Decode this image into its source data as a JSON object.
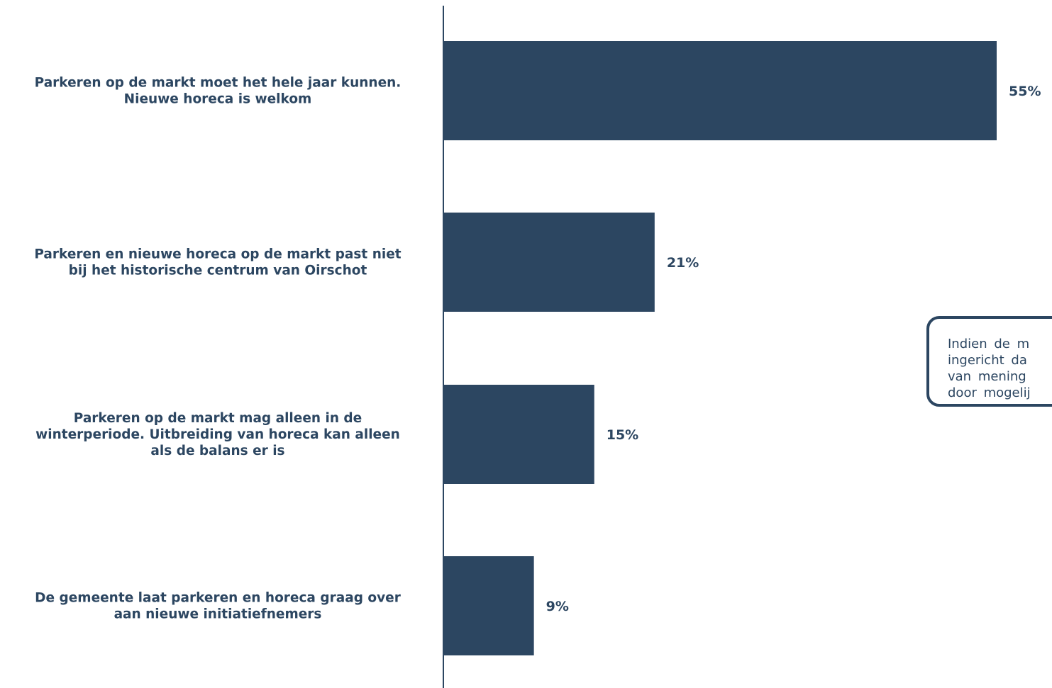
{
  "chart_data": {
    "type": "bar",
    "orientation": "horizontal",
    "categories": [
      [
        "Parkeren op de markt moet het hele jaar kunnen.",
        "Nieuwe horeca is welkom"
      ],
      [
        "Parkeren en nieuwe horeca op de markt past niet",
        "bij het historische centrum van Oirschot"
      ],
      [
        "Parkeren op de markt mag alleen in de",
        "winterperiode. Uitbreiding van horeca kan alleen",
        "als de balans er is"
      ],
      [
        "De gemeente laat parkeren en horeca graag over",
        "aan nieuwe initiatiefnemers"
      ]
    ],
    "values": [
      55,
      21,
      15,
      9
    ],
    "value_labels": [
      "55%",
      "21%",
      "15%",
      "9%"
    ],
    "unit": "%",
    "title": "",
    "xlabel": "",
    "ylabel": "",
    "grid": false,
    "legend": "none"
  },
  "colors": {
    "bar": "#2c4661",
    "text": "#2c4661",
    "axis": "#2c4661"
  },
  "note": {
    "lines": [
      "Indien de m",
      "ingericht da",
      "van mening",
      "door mogelij"
    ]
  }
}
